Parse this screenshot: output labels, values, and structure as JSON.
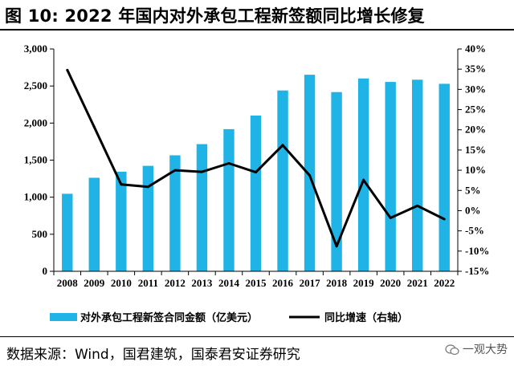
{
  "title": "图 10: 2022 年国内对外承包工程新签额同比增长修复",
  "source": "数据来源：Wind，国君建筑，国泰君安证券研究",
  "watermark": "一观大势",
  "colors": {
    "bar": "#1fb3e6",
    "line": "#000000"
  },
  "chart_data": {
    "type": "bar+line",
    "categories": [
      "2008",
      "2009",
      "2010",
      "2011",
      "2012",
      "2013",
      "2014",
      "2015",
      "2016",
      "2017",
      "2018",
      "2019",
      "2020",
      "2021",
      "2022"
    ],
    "series": [
      {
        "name": "对外承包工程新签合同金额（亿美元）",
        "type": "bar",
        "axis": "left",
        "values": [
          1046,
          1262,
          1344,
          1423,
          1565,
          1716,
          1918,
          2101,
          2440,
          2652,
          2418,
          2602,
          2555,
          2585,
          2530
        ]
      },
      {
        "name": "同比增速（右轴）",
        "type": "line",
        "axis": "right",
        "values": [
          34.8,
          20.7,
          6.5,
          5.9,
          10.0,
          9.6,
          11.7,
          9.5,
          16.2,
          8.7,
          -8.8,
          7.6,
          -1.8,
          1.2,
          -2.1
        ]
      }
    ],
    "left_axis": {
      "min": 0,
      "max": 3000,
      "step": 500,
      "tick_labels": [
        "0",
        "500",
        "1,000",
        "1,500",
        "2,000",
        "2,500",
        "3,000"
      ]
    },
    "right_axis": {
      "min": -15,
      "max": 40,
      "step": 5,
      "tick_labels": [
        "-15%",
        "-10%",
        "-5%",
        "0%",
        "5%",
        "10%",
        "15%",
        "20%",
        "25%",
        "30%",
        "35%",
        "40%"
      ]
    },
    "legend_position": "bottom",
    "grid": false
  }
}
